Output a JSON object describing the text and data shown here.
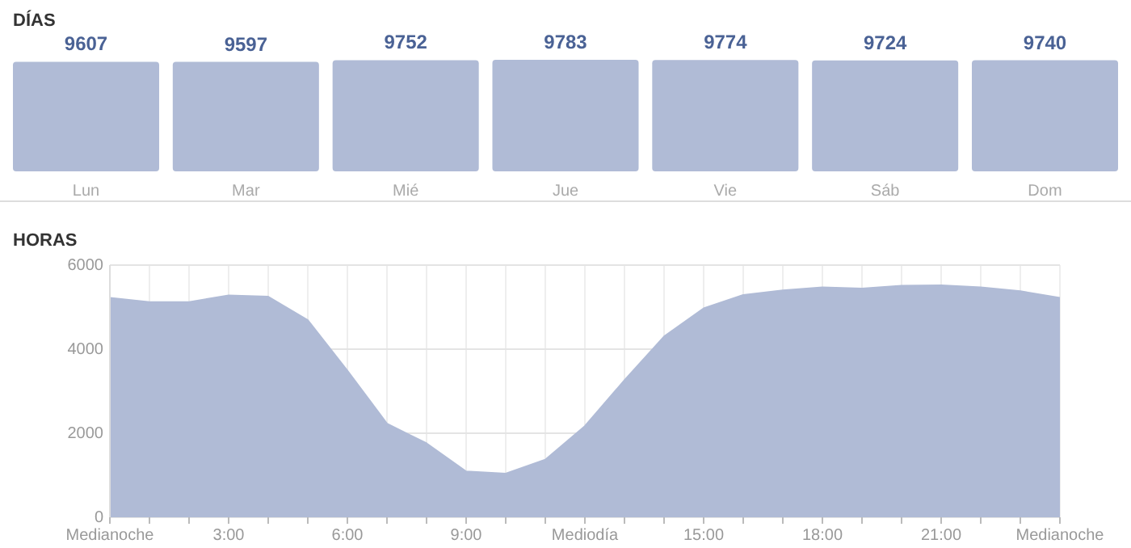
{
  "chart_data": [
    {
      "type": "bar",
      "title": "DÍAS",
      "categories": [
        "Lun",
        "Mar",
        "Mié",
        "Jue",
        "Vie",
        "Sáb",
        "Dom"
      ],
      "values": [
        9607,
        9597,
        9752,
        9783,
        9774,
        9724,
        9740
      ],
      "color": "#b0bbd6",
      "data_labels": true
    },
    {
      "type": "area",
      "title": "HORAS",
      "x": [
        0,
        1,
        2,
        3,
        4,
        5,
        6,
        7,
        8,
        9,
        10,
        11,
        12,
        13,
        14,
        15,
        16,
        17,
        18,
        19,
        20,
        21,
        22,
        23,
        24
      ],
      "values": [
        5220,
        5120,
        5120,
        5280,
        5250,
        4690,
        3490,
        2230,
        1760,
        1090,
        1040,
        1370,
        2170,
        3260,
        4300,
        4970,
        5290,
        5400,
        5470,
        5440,
        5510,
        5520,
        5470,
        5380,
        5220
      ],
      "color": "#b0bbd6",
      "xlim": [
        0,
        24
      ],
      "ylim": [
        0,
        6000
      ],
      "yticks": [
        0,
        2000,
        4000,
        6000
      ],
      "xticks": [
        {
          "value": 0,
          "label": "Medianoche"
        },
        {
          "value": 1,
          "label": null
        },
        {
          "value": 2,
          "label": null
        },
        {
          "value": 3,
          "label": "3:00"
        },
        {
          "value": 4,
          "label": null
        },
        {
          "value": 5,
          "label": null
        },
        {
          "value": 6,
          "label": "6:00"
        },
        {
          "value": 7,
          "label": null
        },
        {
          "value": 8,
          "label": null
        },
        {
          "value": 9,
          "label": "9:00"
        },
        {
          "value": 10,
          "label": null
        },
        {
          "value": 11,
          "label": null
        },
        {
          "value": 12,
          "label": "Mediodía"
        },
        {
          "value": 13,
          "label": null
        },
        {
          "value": 14,
          "label": null
        },
        {
          "value": 15,
          "label": "15:00"
        },
        {
          "value": 16,
          "label": null
        },
        {
          "value": 17,
          "label": null
        },
        {
          "value": 18,
          "label": "18:00"
        },
        {
          "value": 19,
          "label": null
        },
        {
          "value": 20,
          "label": null
        },
        {
          "value": 21,
          "label": "21:00"
        },
        {
          "value": 22,
          "label": null
        },
        {
          "value": 23,
          "label": null
        },
        {
          "value": 24,
          "label": "Medianoche"
        }
      ],
      "grid": true
    }
  ]
}
